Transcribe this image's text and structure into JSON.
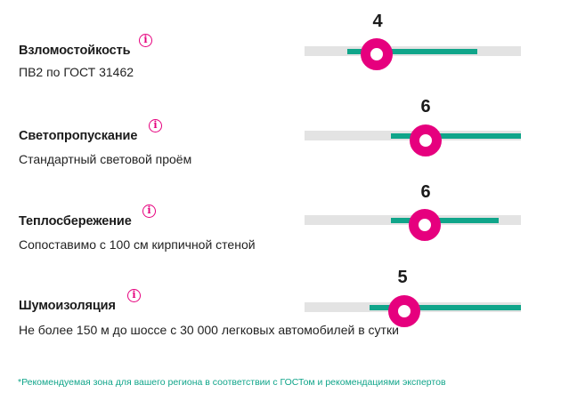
{
  "ratings": [
    {
      "title": "Взломостойкость",
      "description": "ПВ2 по ГОСТ 31462",
      "value": "4",
      "level_fraction": 0.35,
      "zone_fraction": [
        0.2,
        0.8
      ],
      "info_icon": "info-icon"
    },
    {
      "title": "Светопропускание",
      "description": "Стандартный световой проём",
      "value": "6",
      "level_fraction": 0.55,
      "zone_fraction": [
        0.4,
        1.0
      ],
      "info_icon": "info-icon"
    },
    {
      "title": "Теплосбережение",
      "description": "Сопоставимо с 100 см кирпичной стеной",
      "value": "6",
      "level_fraction": 0.55,
      "zone_fraction": [
        0.4,
        0.9
      ],
      "info_icon": "info-icon"
    },
    {
      "title": "Шумоизоляция",
      "description": "Не более 150 м до шоссе с 30 000 легковых автомобилей в сутки",
      "value": "5",
      "level_fraction": 0.45,
      "zone_fraction": [
        0.3,
        1.0
      ],
      "info_icon": "info-icon"
    }
  ],
  "footnote": "*Рекомендуемая зона для вашего региона в соответствии с ГОСТом и рекомендациями экспертов",
  "colors": {
    "accent": "#e6007e",
    "zone": "#10a58a",
    "track": "#e3e3e3"
  }
}
